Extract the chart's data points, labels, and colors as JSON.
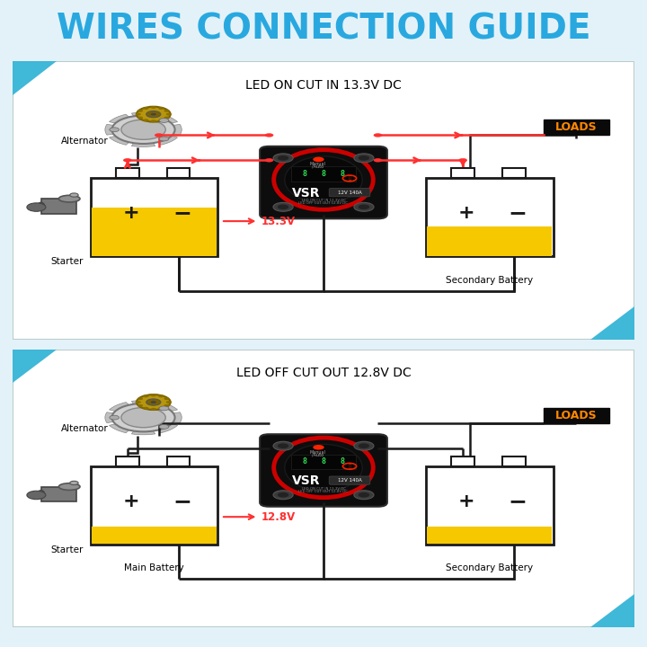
{
  "title": "WIRES CONNECTION GUIDE",
  "title_color": "#29A8E0",
  "bg_color": "#E3F2F8",
  "panel_bg": "#FFFFFF",
  "panel_border": "#CCDDDD",
  "diagram1": {
    "label": "LED ON CUT IN 13.3V DC",
    "voltage_label": "13.3V",
    "main_label": null,
    "sec_label": "Secondary Battery"
  },
  "diagram2": {
    "label": "LED OFF CUT OUT 12.8V DC",
    "voltage_label": "12.8V",
    "main_label": "Main Battery",
    "sec_label": "Secondary Battery"
  },
  "red": "#FF3030",
  "black": "#1A1A1A",
  "battery_fill": "#F5C800",
  "battery_border": "#1A1A1A",
  "loads_bg": "#0A0A0A",
  "loads_text": "#FF8800",
  "corner_color": "#40B8D8",
  "vsr_bg": "#111111",
  "vsr_ring": "#CC0000",
  "vsr_ring2": "#DD2200"
}
